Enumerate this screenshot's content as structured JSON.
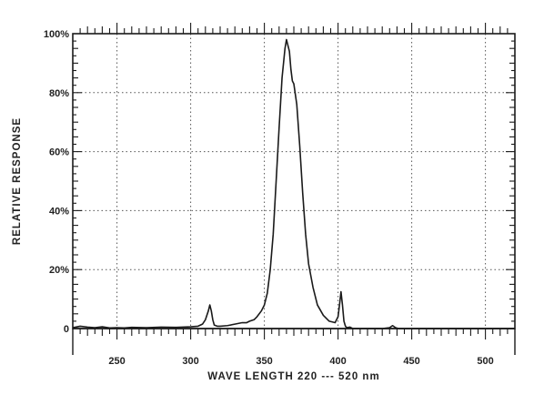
{
  "chart_data": {
    "type": "line",
    "title": "",
    "xlabel": "WAVE LENGTH 220 --- 520 nm",
    "ylabel": "RELATIVE RESPONSE",
    "xlim": [
      220,
      520
    ],
    "ylim": [
      0,
      100
    ],
    "x_ticks": [
      250,
      300,
      350,
      400,
      450,
      500
    ],
    "x_tick_labels": [
      "250",
      "300",
      "350",
      "400",
      "450",
      "500"
    ],
    "y_ticks": [
      0,
      20,
      40,
      60,
      80,
      100
    ],
    "y_tick_labels": [
      "0",
      "20%",
      "40%",
      "60%",
      "80%",
      "100%"
    ],
    "grid": true,
    "grid_style": "dotted",
    "colors": {
      "line": "#1a1a1a",
      "grid": "#555555",
      "frame": "#1a1a1a"
    },
    "series": [
      {
        "x": [
          220,
          225,
          230,
          235,
          240,
          245,
          250,
          255,
          260,
          270,
          280,
          290,
          300,
          305,
          308,
          310,
          312,
          313,
          314,
          315,
          316,
          318,
          320,
          325,
          330,
          335,
          338,
          340,
          343,
          345,
          348,
          350,
          352,
          354,
          356,
          358,
          360,
          362,
          364,
          365,
          366,
          367,
          368,
          369,
          370,
          372,
          374,
          376,
          378,
          380,
          383,
          386,
          390,
          394,
          398,
          400,
          401,
          402,
          403,
          404,
          405,
          406,
          408,
          410,
          420,
          430,
          435,
          437,
          439,
          441,
          450,
          460,
          480,
          500,
          520
        ],
        "y": [
          0.3,
          0.8,
          0.5,
          0.3,
          0.6,
          0.2,
          0.3,
          0.2,
          0.4,
          0.3,
          0.5,
          0.4,
          0.6,
          0.8,
          1.5,
          3,
          6,
          8,
          6,
          3,
          1.2,
          0.8,
          0.8,
          1,
          1.5,
          2,
          2,
          2.5,
          3,
          4,
          6,
          8,
          12,
          20,
          32,
          50,
          68,
          85,
          95,
          98,
          96,
          94,
          88,
          84,
          83,
          76,
          62,
          46,
          32,
          22,
          14,
          8,
          4.5,
          2.5,
          2,
          4,
          8,
          12.5,
          8,
          2.5,
          0.8,
          0.3,
          0.5,
          0,
          0,
          0,
          0.3,
          1,
          0.3,
          0,
          0,
          0,
          0,
          0,
          0
        ]
      }
    ]
  }
}
